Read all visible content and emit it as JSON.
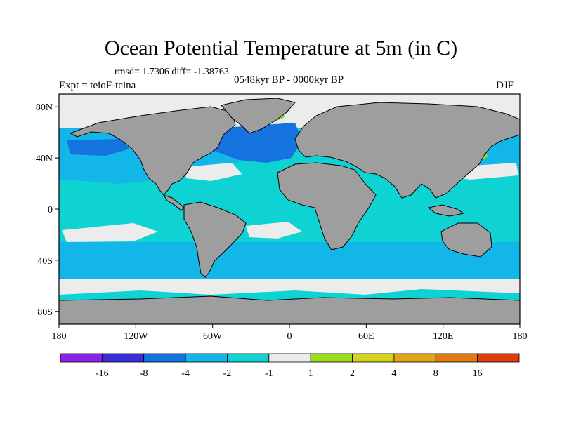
{
  "title": "Ocean Potential Temperature at 5m (in C)",
  "stats": "rmsd= 1.7306  diff= -1.38763",
  "period": "0548kyr BP - 0000kyr BP",
  "experiment": "Expt = teioF-teina",
  "season": "DJF",
  "map": {
    "lat_ticks": [
      "80N",
      "40N",
      "0",
      "40S",
      "80S"
    ],
    "lon_ticks": [
      "180",
      "120W",
      "60W",
      "0",
      "60E",
      "120E",
      "180"
    ],
    "lat_values": [
      80,
      40,
      0,
      -40,
      -80
    ],
    "lon_values": [
      -180,
      -120,
      -60,
      0,
      60,
      120,
      180
    ],
    "lat_range": [
      -90,
      90
    ],
    "lon_range": [
      -180,
      180
    ],
    "colors": {
      "land": "#9e9e9e",
      "ocean_minus2_to_minus1": "#0fd2d2",
      "ocean_minus4_to_minus2": "#12b6e8",
      "ocean_minus8_to_minus4": "#1573e0",
      "ocean_minus1_to_1": "#ececec",
      "ocean_1_to_2": "#9bdc1c"
    }
  },
  "colorbar": {
    "colors": [
      "#8a22e8",
      "#3a2fd6",
      "#1573e0",
      "#12b6e8",
      "#0fd2d2",
      "#ececec",
      "#9bdc1c",
      "#d4d21a",
      "#e0a51a",
      "#e07a14",
      "#e03c0c"
    ],
    "labels": [
      "-16",
      "-8",
      "-4",
      "-2",
      "-1",
      "1",
      "2",
      "4",
      "8",
      "16"
    ]
  }
}
